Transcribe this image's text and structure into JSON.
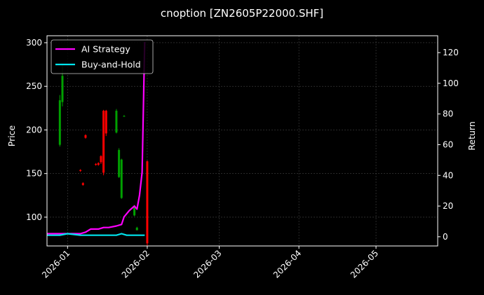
{
  "chart_data": {
    "type": "line",
    "title": "cnoption [ZN2605P22000.SHF]",
    "ylabel": "Price",
    "y2label": "Return",
    "xlim": [
      "2025-12-24",
      "2026-05-25"
    ],
    "ylim": [
      67,
      308
    ],
    "y2lim": [
      -6,
      131
    ],
    "x_ticks": [
      "2026-01",
      "2026-02",
      "2026-03",
      "2026-04",
      "2026-05"
    ],
    "y_ticks": [
      100,
      150,
      200,
      250,
      300
    ],
    "y2_ticks": [
      0,
      20,
      40,
      60,
      80,
      100,
      120
    ],
    "grid": true,
    "legend_position": "top-left",
    "colors": {
      "background": "#000000",
      "up": "#00a000",
      "down": "#ff0000",
      "ai_strategy": "#ff00ff",
      "buy_and_hold": "#00e5ee",
      "grid": "#444444",
      "axes": "#ffffff"
    },
    "candles": [
      {
        "date": "2025-12-29",
        "open": 183,
        "high": 240,
        "low": 181,
        "close": 234
      },
      {
        "date": "2025-12-30",
        "open": 232,
        "high": 275,
        "low": 227,
        "close": 262
      },
      {
        "date": "2026-01-06",
        "open": 154,
        "high": 155,
        "low": 152,
        "close": 153
      },
      {
        "date": "2026-01-07",
        "open": 139,
        "high": 140,
        "low": 136,
        "close": 137
      },
      {
        "date": "2026-01-08",
        "open": 194,
        "high": 195,
        "low": 190,
        "close": 191
      },
      {
        "date": "2026-01-12",
        "open": 161,
        "high": 162,
        "low": 159,
        "close": 160
      },
      {
        "date": "2026-01-13",
        "open": 162,
        "high": 163,
        "low": 159,
        "close": 160
      },
      {
        "date": "2026-01-14",
        "open": 170,
        "high": 171,
        "low": 161,
        "close": 163
      },
      {
        "date": "2026-01-15",
        "open": 222,
        "high": 223,
        "low": 148,
        "close": 151
      },
      {
        "date": "2026-01-16",
        "open": 222,
        "high": 223,
        "low": 193,
        "close": 196
      },
      {
        "date": "2026-01-20",
        "open": 197,
        "high": 224,
        "low": 196,
        "close": 222
      },
      {
        "date": "2026-01-21",
        "open": 146,
        "high": 179,
        "low": 145,
        "close": 177
      },
      {
        "date": "2026-01-22",
        "open": 122,
        "high": 167,
        "low": 121,
        "close": 166
      },
      {
        "date": "2026-01-23",
        "open": 216,
        "high": 217,
        "low": 215,
        "close": 216
      },
      {
        "date": "2026-01-27",
        "open": 102,
        "high": 114,
        "low": 101,
        "close": 113
      },
      {
        "date": "2026-01-28",
        "open": 85,
        "high": 89,
        "low": 85,
        "close": 88
      },
      {
        "date": "2026-02-01",
        "open": 164,
        "high": 165,
        "low": 67,
        "close": 70
      }
    ],
    "series": [
      {
        "name": "AI Strategy",
        "x": [
          "2025-12-24",
          "2025-12-29",
          "2026-01-01",
          "2026-01-06",
          "2026-01-08",
          "2026-01-10",
          "2026-01-13",
          "2026-01-15",
          "2026-01-17",
          "2026-01-20",
          "2026-01-22",
          "2026-01-23",
          "2026-01-25",
          "2026-01-27",
          "2026-01-28",
          "2026-01-29",
          "2026-01-30",
          "2026-01-31"
        ],
        "values": [
          2,
          2,
          2,
          2,
          3,
          5,
          5,
          6,
          6,
          7,
          8,
          13,
          17,
          20,
          18,
          27,
          42,
          127
        ]
      },
      {
        "name": "Buy-and-Hold",
        "x": [
          "2025-12-24",
          "2025-12-29",
          "2026-01-01",
          "2026-01-06",
          "2026-01-08",
          "2026-01-13",
          "2026-01-17",
          "2026-01-20",
          "2026-01-22",
          "2026-01-24",
          "2026-01-27",
          "2026-01-29",
          "2026-01-31"
        ],
        "values": [
          1,
          1,
          2,
          1,
          1,
          1,
          1,
          1,
          2,
          1,
          1,
          1,
          1
        ]
      }
    ]
  }
}
